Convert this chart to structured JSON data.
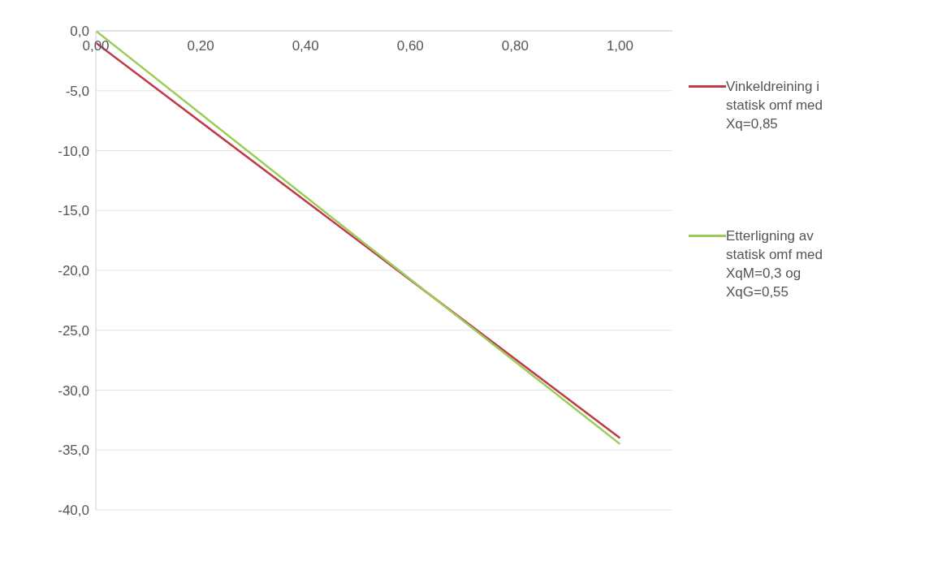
{
  "chart_data": {
    "type": "line",
    "x": [
      0,
      0.5,
      1.0
    ],
    "series": [
      {
        "name": "Vinkeldreining i statisk omf med Xq=0,85",
        "color": "#be3a4a",
        "values": [
          -1.0,
          -17.5,
          -34.0
        ]
      },
      {
        "name": "Etterligning av statisk omf med XqM=0,3 og XqG=0,55",
        "color": "#9ccc5a",
        "values": [
          0,
          -17.3,
          -34.5
        ]
      }
    ],
    "xlim": [
      0,
      1.1
    ],
    "xticks": [
      {
        "value": 0,
        "label": "0,00"
      },
      {
        "value": 0.2,
        "label": "0,20"
      },
      {
        "value": 0.4,
        "label": "0,40"
      },
      {
        "value": 0.6,
        "label": "0,60"
      },
      {
        "value": 0.8,
        "label": "0,80"
      },
      {
        "value": 1.0,
        "label": "1,00"
      }
    ],
    "ylim": [
      -40,
      0
    ],
    "yticks": [
      {
        "value": 0,
        "label": "0,0"
      },
      {
        "value": -5,
        "label": "-5,0"
      },
      {
        "value": -10,
        "label": "-10,0"
      },
      {
        "value": -15,
        "label": "-15,0"
      },
      {
        "value": -20,
        "label": "-20,0"
      },
      {
        "value": -25,
        "label": "-25,0"
      },
      {
        "value": -30,
        "label": "-30,0"
      },
      {
        "value": -35,
        "label": "-35,0"
      },
      {
        "value": -40,
        "label": "-40,0"
      }
    ],
    "grid": "y",
    "legend": "right",
    "marker": "none",
    "line_style": "solid"
  }
}
